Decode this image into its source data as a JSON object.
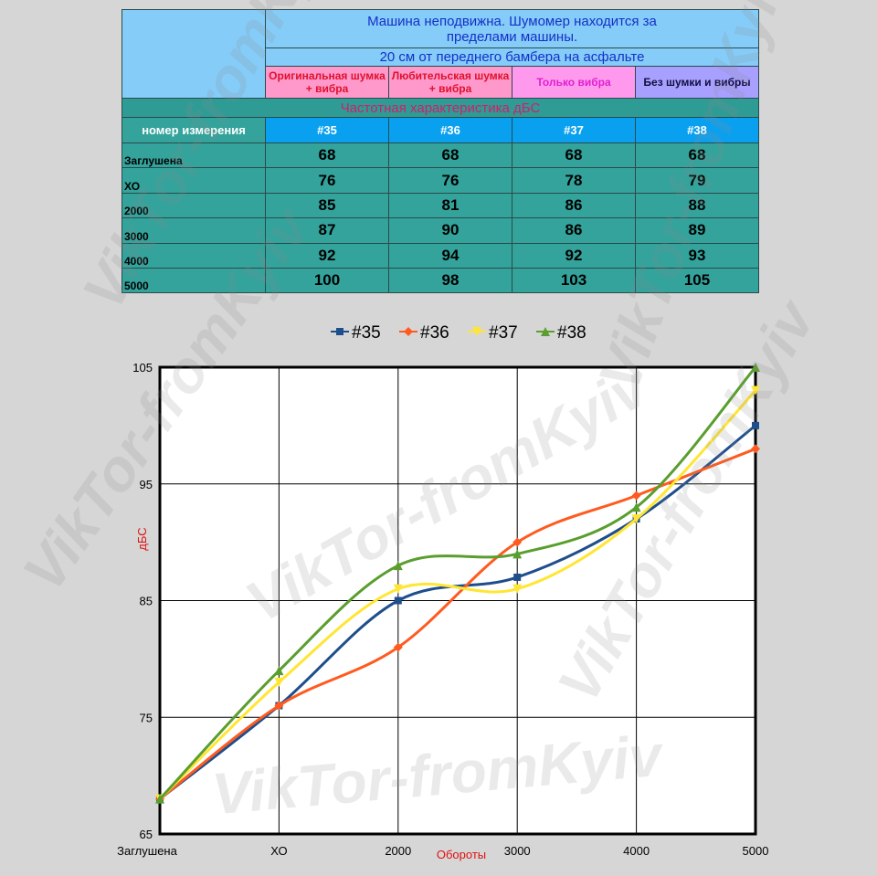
{
  "watermark": "VikTor-fromKyiv",
  "table": {
    "title": "Машина неподвижна. Шумомер находится за пределами машины.",
    "subtitle": "20 см от переднего бамбера на асфальте",
    "columns": [
      "Оригинальная шумка + вибра",
      "Любительская шумка + вибра",
      "Только вибра",
      "Без шумки и вибры"
    ],
    "section": "Частотная характеристика дБС",
    "id_label": "номер измерения",
    "ids": [
      "#35",
      "#36",
      "#37",
      "#38"
    ],
    "rows": [
      {
        "label": "Заглушена",
        "values": [
          68,
          68,
          68,
          68
        ]
      },
      {
        "label": "ХО",
        "values": [
          76,
          76,
          78,
          79
        ]
      },
      {
        "label": "2000",
        "values": [
          85,
          81,
          86,
          88
        ]
      },
      {
        "label": "3000",
        "values": [
          87,
          90,
          86,
          89
        ]
      },
      {
        "label": "4000",
        "values": [
          92,
          94,
          92,
          93
        ]
      },
      {
        "label": "5000",
        "values": [
          100,
          98,
          103,
          105
        ]
      }
    ]
  },
  "chart_data": {
    "type": "line",
    "x_label": "Обороты",
    "y_label": "дБС",
    "categories": [
      "Заглушена",
      "ХО",
      "2000",
      "3000",
      "4000",
      "5000"
    ],
    "series": [
      {
        "name": "#35",
        "color": "#1f4e8c",
        "marker": "square",
        "values": [
          68,
          76,
          85,
          87,
          92,
          100
        ]
      },
      {
        "name": "#36",
        "color": "#ff5a1f",
        "marker": "diamond",
        "values": [
          68,
          76,
          81,
          90,
          94,
          98
        ]
      },
      {
        "name": "#37",
        "color": "#ffe633",
        "marker": "triangle-down",
        "values": [
          68,
          78,
          86,
          86,
          92,
          103
        ]
      },
      {
        "name": "#38",
        "color": "#5a9e2e",
        "marker": "triangle",
        "values": [
          68,
          79,
          88,
          89,
          93,
          105
        ]
      }
    ],
    "ylim": [
      65,
      105
    ],
    "yticks": [
      65,
      75,
      85,
      95,
      105
    ],
    "grid": true,
    "smooth": true
  }
}
